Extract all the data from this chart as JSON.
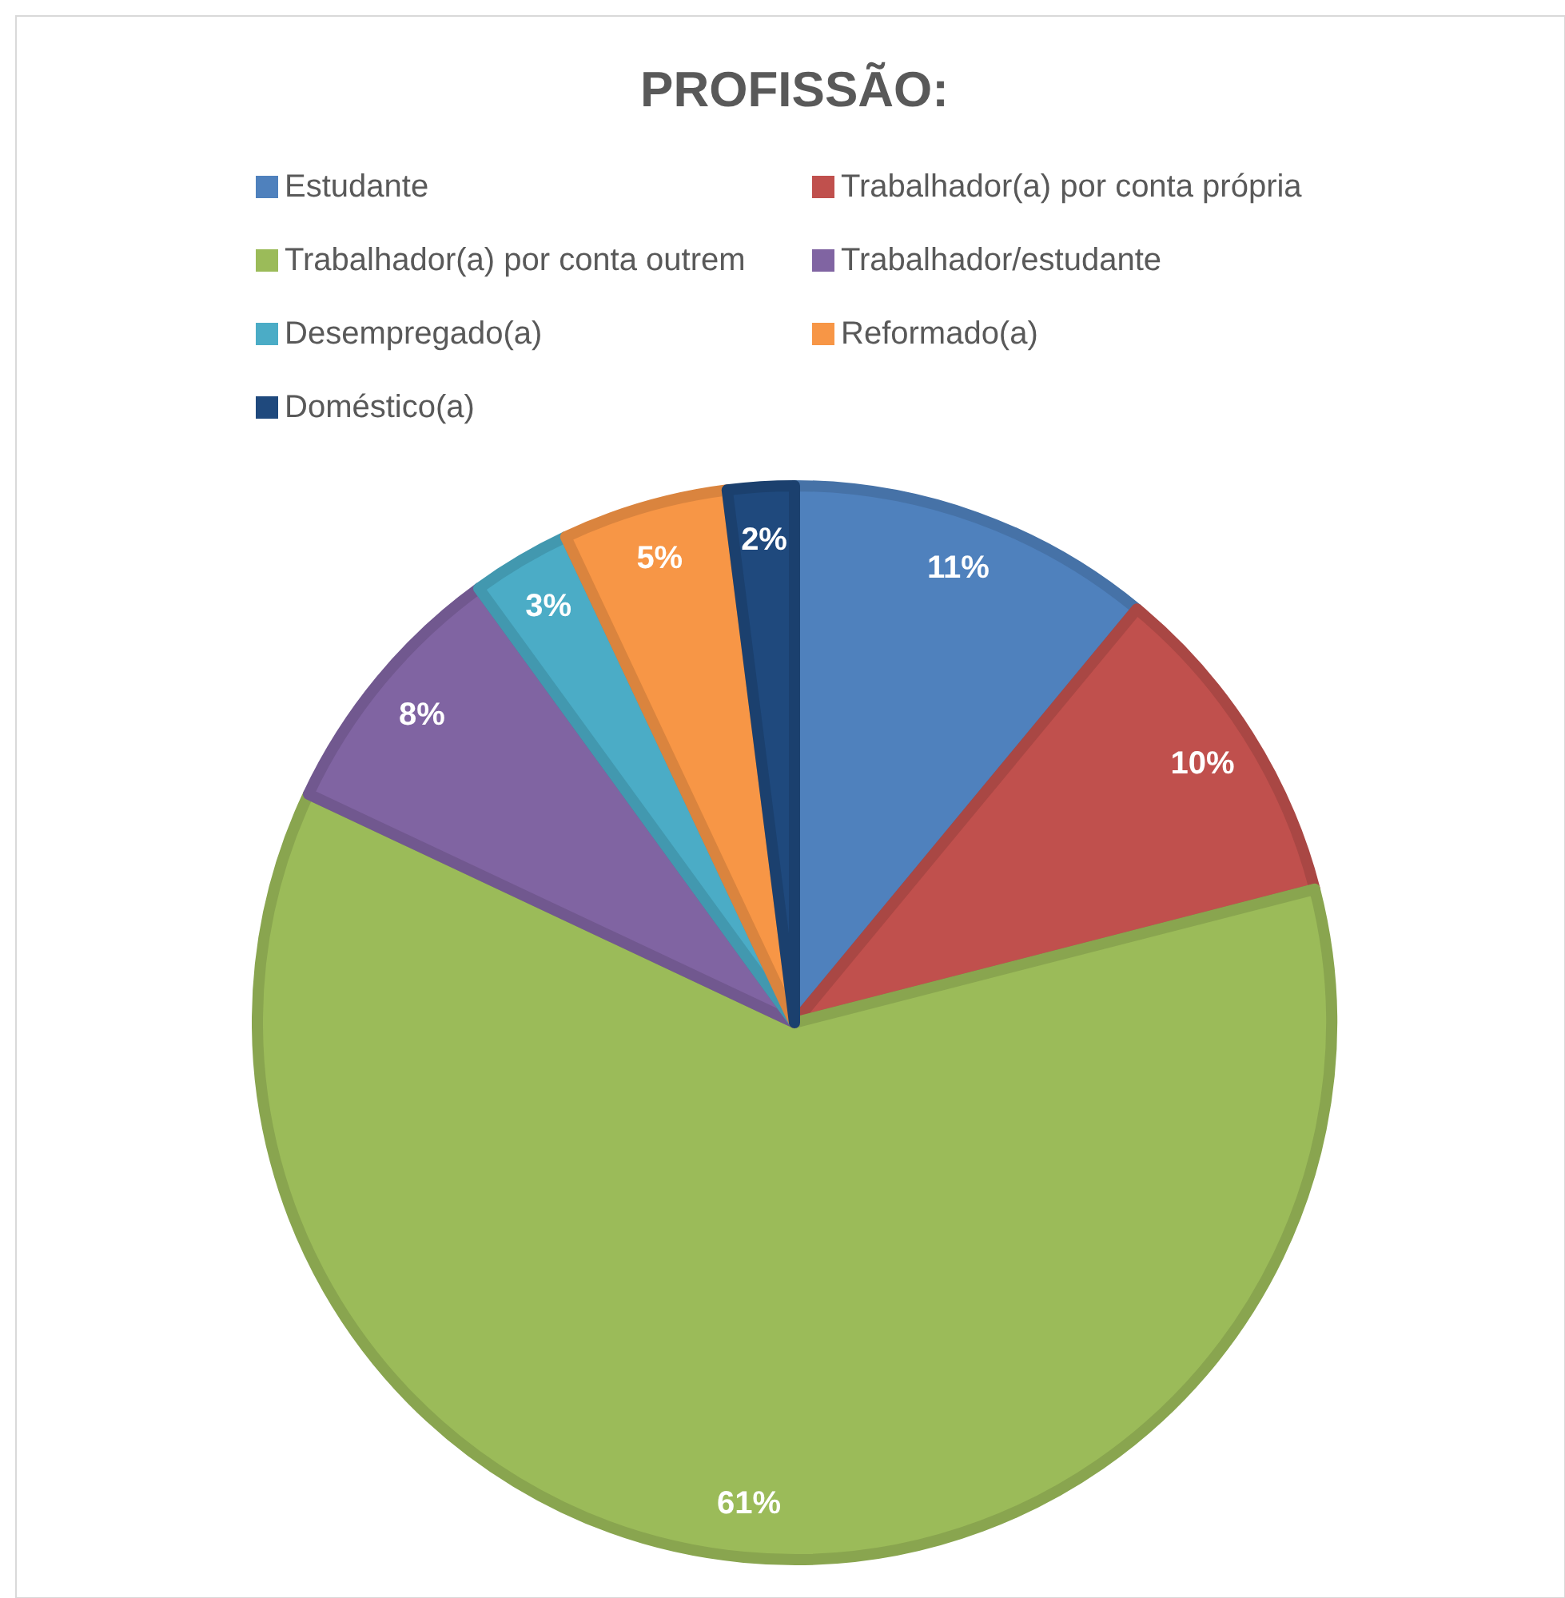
{
  "chart_data": {
    "type": "pie",
    "title": "PROFISSÃO:",
    "categories": [
      "Estudante",
      "Trabalhador(a) por conta própria",
      "Trabalhador(a) por conta outrem",
      "Trabalhador/estudante",
      "Desempregado(a)",
      "Reformado(a)",
      "Doméstico(a)"
    ],
    "values": [
      11,
      10,
      61,
      8,
      3,
      5,
      2
    ],
    "colors": [
      "#4f81bd",
      "#c0504d",
      "#9bbb59",
      "#8064a2",
      "#4bacc6",
      "#f79646",
      "#1f497d"
    ],
    "value_labels": [
      "11%",
      "10%",
      "61%",
      "8%",
      "3%",
      "5%",
      "2%"
    ],
    "legend": "top"
  }
}
